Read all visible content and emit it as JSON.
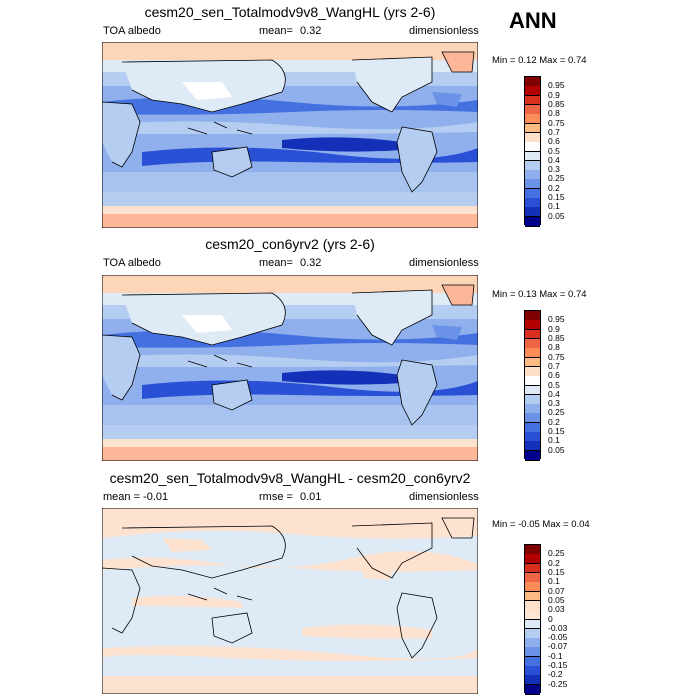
{
  "season": "ANN",
  "panels": [
    {
      "title": "cesm20_sen_Totalmodv9v8_WangHL (yrs 2-6)",
      "left_label": "TOA albedo",
      "mid_label": "mean=",
      "mid_value": "0.32",
      "right_label": "dimensionless",
      "minmax": "Min =  0.12 Max =   0.74",
      "colorbar": {
        "levels": [
          "0.95",
          "0.9",
          "0.85",
          "0.8",
          "0.75",
          "0.7",
          "0.6",
          "0.5",
          "0.4",
          "0.3",
          "0.25",
          "0.2",
          "0.15",
          "0.1",
          "0.05"
        ],
        "colors": [
          "#7f0000",
          "#b30000",
          "#d7301f",
          "#ef6548",
          "#fc8d59",
          "#fdbb84",
          "#fee0c8",
          "#ffffff",
          "#deebf7",
          "#b4cdf0",
          "#8fb0ec",
          "#6a92e6",
          "#4571e0",
          "#2a50d6",
          "#1530b8",
          "#00008b"
        ]
      }
    },
    {
      "title": "cesm20_con6yrv2 (yrs 2-6)",
      "left_label": "TOA albedo",
      "mid_label": "mean=",
      "mid_value": "0.32",
      "right_label": "dimensionless",
      "minmax": "Min =  0.13 Max =   0.74",
      "colorbar": {
        "levels": [
          "0.95",
          "0.9",
          "0.85",
          "0.8",
          "0.75",
          "0.7",
          "0.6",
          "0.5",
          "0.4",
          "0.3",
          "0.25",
          "0.2",
          "0.15",
          "0.1",
          "0.05"
        ],
        "colors": [
          "#7f0000",
          "#b30000",
          "#d7301f",
          "#ef6548",
          "#fc8d59",
          "#fdbb84",
          "#fee0c8",
          "#ffffff",
          "#deebf7",
          "#b4cdf0",
          "#8fb0ec",
          "#6a92e6",
          "#4571e0",
          "#2a50d6",
          "#1530b8",
          "#00008b"
        ]
      }
    },
    {
      "title": "cesm20_sen_Totalmodv9v8_WangHL - cesm20_con6yrv2",
      "left_label": "mean =  -0.01",
      "mid_label": "rmse =",
      "mid_value": "0.01",
      "right_label": "dimensionless",
      "minmax": "Min =  -0.05 Max =   0.04",
      "colorbar": {
        "levels": [
          "0.25",
          "0.2",
          "0.15",
          "0.1",
          "0.07",
          "0.05",
          "0.03",
          "0",
          "-0.03",
          "-0.05",
          "-0.07",
          "-0.1",
          "-0.15",
          "-0.2",
          "-0.25"
        ],
        "colors": [
          "#7f0000",
          "#b30000",
          "#d7301f",
          "#ef6548",
          "#fc8d59",
          "#fdbb84",
          "#fee0c8",
          "#fde5d3",
          "#deebf7",
          "#b4cdf0",
          "#8fb0ec",
          "#6a92e6",
          "#4571e0",
          "#2a50d6",
          "#1530b8",
          "#00008b"
        ]
      }
    }
  ]
}
